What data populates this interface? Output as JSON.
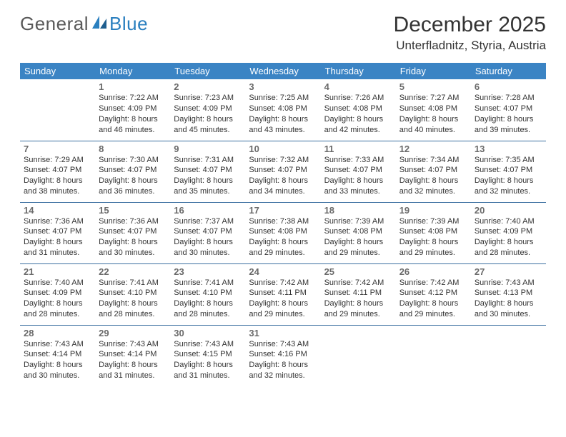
{
  "brand": {
    "part1": "General",
    "part2": "Blue"
  },
  "title": "December 2025",
  "location": "Unterfladnitz, Styria, Austria",
  "colors": {
    "header_bg": "#3b84c4",
    "header_text": "#ffffff",
    "row_divider": "#3b6fa0",
    "body_text": "#333333",
    "daynum_text": "#6a6a6a",
    "brand_gray": "#5a5a5a",
    "brand_blue": "#2a7fbf"
  },
  "columns": [
    "Sunday",
    "Monday",
    "Tuesday",
    "Wednesday",
    "Thursday",
    "Friday",
    "Saturday"
  ],
  "weeks": [
    [
      null,
      {
        "n": "1",
        "sr": "7:22 AM",
        "ss": "4:09 PM",
        "dl": "8 hours and 46 minutes."
      },
      {
        "n": "2",
        "sr": "7:23 AM",
        "ss": "4:09 PM",
        "dl": "8 hours and 45 minutes."
      },
      {
        "n": "3",
        "sr": "7:25 AM",
        "ss": "4:08 PM",
        "dl": "8 hours and 43 minutes."
      },
      {
        "n": "4",
        "sr": "7:26 AM",
        "ss": "4:08 PM",
        "dl": "8 hours and 42 minutes."
      },
      {
        "n": "5",
        "sr": "7:27 AM",
        "ss": "4:08 PM",
        "dl": "8 hours and 40 minutes."
      },
      {
        "n": "6",
        "sr": "7:28 AM",
        "ss": "4:07 PM",
        "dl": "8 hours and 39 minutes."
      }
    ],
    [
      {
        "n": "7",
        "sr": "7:29 AM",
        "ss": "4:07 PM",
        "dl": "8 hours and 38 minutes."
      },
      {
        "n": "8",
        "sr": "7:30 AM",
        "ss": "4:07 PM",
        "dl": "8 hours and 36 minutes."
      },
      {
        "n": "9",
        "sr": "7:31 AM",
        "ss": "4:07 PM",
        "dl": "8 hours and 35 minutes."
      },
      {
        "n": "10",
        "sr": "7:32 AM",
        "ss": "4:07 PM",
        "dl": "8 hours and 34 minutes."
      },
      {
        "n": "11",
        "sr": "7:33 AM",
        "ss": "4:07 PM",
        "dl": "8 hours and 33 minutes."
      },
      {
        "n": "12",
        "sr": "7:34 AM",
        "ss": "4:07 PM",
        "dl": "8 hours and 32 minutes."
      },
      {
        "n": "13",
        "sr": "7:35 AM",
        "ss": "4:07 PM",
        "dl": "8 hours and 32 minutes."
      }
    ],
    [
      {
        "n": "14",
        "sr": "7:36 AM",
        "ss": "4:07 PM",
        "dl": "8 hours and 31 minutes."
      },
      {
        "n": "15",
        "sr": "7:36 AM",
        "ss": "4:07 PM",
        "dl": "8 hours and 30 minutes."
      },
      {
        "n": "16",
        "sr": "7:37 AM",
        "ss": "4:07 PM",
        "dl": "8 hours and 30 minutes."
      },
      {
        "n": "17",
        "sr": "7:38 AM",
        "ss": "4:08 PM",
        "dl": "8 hours and 29 minutes."
      },
      {
        "n": "18",
        "sr": "7:39 AM",
        "ss": "4:08 PM",
        "dl": "8 hours and 29 minutes."
      },
      {
        "n": "19",
        "sr": "7:39 AM",
        "ss": "4:08 PM",
        "dl": "8 hours and 29 minutes."
      },
      {
        "n": "20",
        "sr": "7:40 AM",
        "ss": "4:09 PM",
        "dl": "8 hours and 28 minutes."
      }
    ],
    [
      {
        "n": "21",
        "sr": "7:40 AM",
        "ss": "4:09 PM",
        "dl": "8 hours and 28 minutes."
      },
      {
        "n": "22",
        "sr": "7:41 AM",
        "ss": "4:10 PM",
        "dl": "8 hours and 28 minutes."
      },
      {
        "n": "23",
        "sr": "7:41 AM",
        "ss": "4:10 PM",
        "dl": "8 hours and 28 minutes."
      },
      {
        "n": "24",
        "sr": "7:42 AM",
        "ss": "4:11 PM",
        "dl": "8 hours and 29 minutes."
      },
      {
        "n": "25",
        "sr": "7:42 AM",
        "ss": "4:11 PM",
        "dl": "8 hours and 29 minutes."
      },
      {
        "n": "26",
        "sr": "7:42 AM",
        "ss": "4:12 PM",
        "dl": "8 hours and 29 minutes."
      },
      {
        "n": "27",
        "sr": "7:43 AM",
        "ss": "4:13 PM",
        "dl": "8 hours and 30 minutes."
      }
    ],
    [
      {
        "n": "28",
        "sr": "7:43 AM",
        "ss": "4:14 PM",
        "dl": "8 hours and 30 minutes."
      },
      {
        "n": "29",
        "sr": "7:43 AM",
        "ss": "4:14 PM",
        "dl": "8 hours and 31 minutes."
      },
      {
        "n": "30",
        "sr": "7:43 AM",
        "ss": "4:15 PM",
        "dl": "8 hours and 31 minutes."
      },
      {
        "n": "31",
        "sr": "7:43 AM",
        "ss": "4:16 PM",
        "dl": "8 hours and 32 minutes."
      },
      null,
      null,
      null
    ]
  ],
  "labels": {
    "sunrise": "Sunrise:",
    "sunset": "Sunset:",
    "daylight": "Daylight:"
  }
}
